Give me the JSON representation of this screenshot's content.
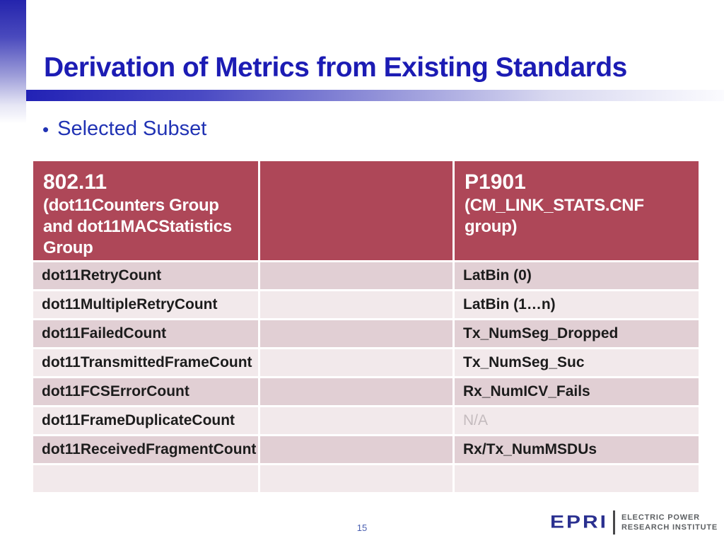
{
  "slide": {
    "title": "Derivation of Metrics from Existing Standards",
    "bullet": "Selected Subset",
    "bullet_glyph": "•",
    "page_number": "15"
  },
  "table": {
    "header": {
      "col1_title": "802.11",
      "col1_subtitle": "(dot11Counters Group and dot11MACStatistics Group",
      "col2_title": "",
      "col3_title": "P1901",
      "col3_subtitle": "(CM_LINK_STATS.CNF group)"
    },
    "rows": [
      {
        "left": "dot11RetryCount",
        "right": "LatBin (0)",
        "na": false
      },
      {
        "left": "dot11MultipleRetryCount",
        "right": "LatBin (1…n)",
        "na": false
      },
      {
        "left": "dot11FailedCount",
        "right": "Tx_NumSeg_Dropped",
        "na": false
      },
      {
        "left": "dot11TransmittedFrameCount",
        "right": "Tx_NumSeg_Suc",
        "na": false
      },
      {
        "left": "dot11FCSErrorCount",
        "right": "Rx_NumICV_Fails",
        "na": false
      },
      {
        "left": "dot11FrameDuplicateCount",
        "right": "N/A",
        "na": true
      },
      {
        "left": "dot11ReceivedFragmentCount",
        "right": "Rx/Tx_NumMSDUs",
        "na": false
      },
      {
        "left": "",
        "right": "",
        "na": false
      }
    ]
  },
  "logo": {
    "wordmark": "EPRI",
    "line1": "ELECTRIC POWER",
    "line2": "RESEARCH INSTITUTE"
  },
  "colors": {
    "title_blue": "#1c1cb4",
    "bullet_blue": "#2133b4",
    "header_bg": "#ae4758",
    "row_dark": "#e1cfd4",
    "row_light": "#f2e9eb",
    "na_gray": "#c4bbbe",
    "page_blue": "#4a5fb0",
    "logo_navy": "#2a3090",
    "logo_gray": "#5d6063"
  }
}
